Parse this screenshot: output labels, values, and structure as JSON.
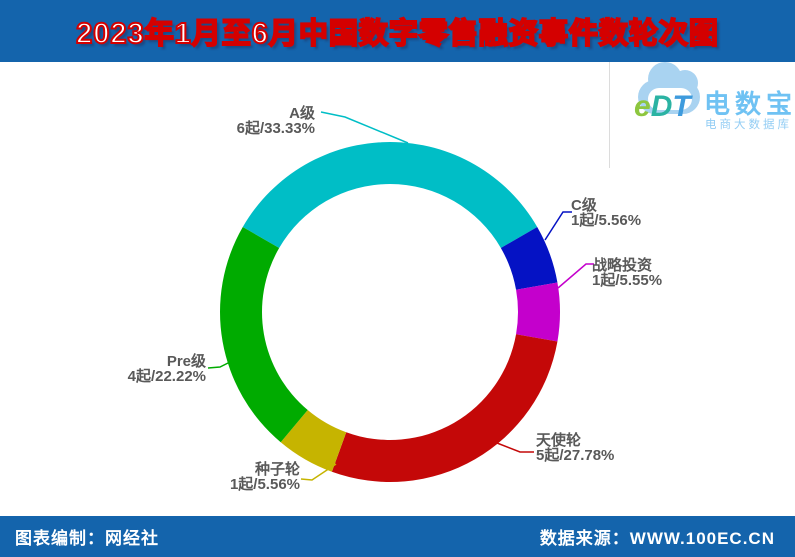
{
  "header": {
    "title": "2023年1月至6月中国数字零售融资事件数轮次图"
  },
  "logo": {
    "letters": {
      "e": "e",
      "d": "D",
      "t": "T"
    },
    "name": "电数宝",
    "subtitle": "电商大数据库"
  },
  "footer": {
    "left": "图表编制：网经社",
    "right": "数据来源：WWW.100EC.CN"
  },
  "colors": {
    "bar_blue": "#1464AC",
    "title_red": "#D40000",
    "label_gray": "#595959"
  },
  "chart_data": {
    "type": "pie",
    "subtype": "donut",
    "title": "2023年1月至6月中国数字零售融资事件数轮次图",
    "start_angle_deg": -60,
    "clockwise": true,
    "units": "起",
    "legend_position": "outside-callouts",
    "segments": [
      {
        "name": "A级",
        "count": 6,
        "percent": 33.33,
        "value_label": "6起/33.33%",
        "color": "#00BEC6"
      },
      {
        "name": "C级",
        "count": 1,
        "percent": 5.56,
        "value_label": "1起/5.56%",
        "color": "#0512C4"
      },
      {
        "name": "战略投资",
        "count": 1,
        "percent": 5.55,
        "value_label": "1起/5.55%",
        "color": "#C400CC"
      },
      {
        "name": "天使轮",
        "count": 5,
        "percent": 27.78,
        "value_label": "5起/27.78%",
        "color": "#C40808"
      },
      {
        "name": "种子轮",
        "count": 1,
        "percent": 5.56,
        "value_label": "1起/5.56%",
        "color": "#C6B400"
      },
      {
        "name": "Pre级",
        "count": 4,
        "percent": 22.22,
        "value_label": "4起/22.22%",
        "color": "#00AB00"
      }
    ]
  }
}
